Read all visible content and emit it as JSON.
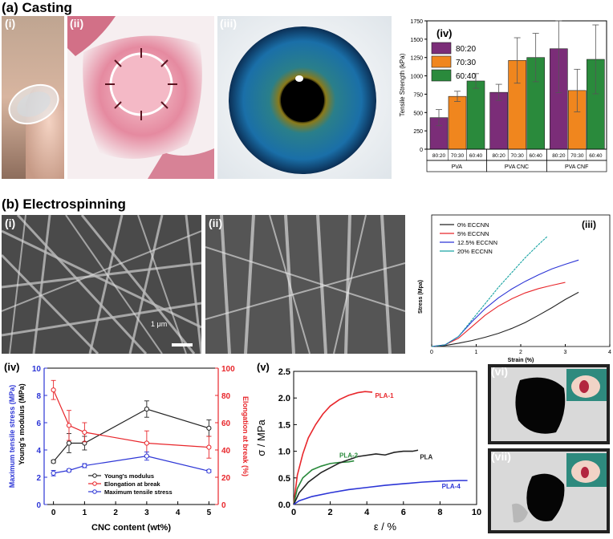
{
  "section_a": {
    "title": "(a) Casting",
    "panels": {
      "i": "(i)",
      "ii": "(ii)",
      "iii": "(iii)",
      "iv": "(iv)"
    }
  },
  "section_b": {
    "title": "(b) Electrospinning",
    "panels": {
      "i": "(i)",
      "ii": "(ii)",
      "iii": "(iii)",
      "iv": "(iv)",
      "v": "(v)",
      "vi": "(vi)",
      "vii": "(vii)"
    },
    "scale_bar": "1 μm"
  },
  "colors": {
    "purple": "#7b2d78",
    "orange": "#f0861e",
    "green": "#2a8a3c",
    "black_series": "#222222",
    "red_series": "#e8262b",
    "blue_series": "#2c35d6",
    "teal_series": "#19a4a3"
  },
  "chart_data": [
    {
      "id": "a-iv",
      "type": "bar",
      "ylabel": "Tensile Strength (kPa)",
      "ylim": [
        0,
        1750
      ],
      "yticks": [
        0,
        250,
        500,
        750,
        1000,
        1250,
        1500,
        1750
      ],
      "legend": [
        "80:20",
        "70:30",
        "60:40"
      ],
      "groups": [
        "PVA",
        "PVA CNC",
        "PVA CNF"
      ],
      "sub_categories": [
        "80:20",
        "70:30",
        "60:40"
      ],
      "values": [
        [
          430,
          720,
          930
        ],
        [
          775,
          1210,
          1250
        ],
        [
          1370,
          800,
          1225
        ]
      ],
      "errors": [
        [
          110,
          70,
          100
        ],
        [
          110,
          310,
          330
        ],
        [
          600,
          290,
          470
        ]
      ]
    },
    {
      "id": "b-iii",
      "type": "line",
      "xlabel": "Strain (%)",
      "ylabel": "Stress (Mpa)",
      "xlim": [
        0,
        4
      ],
      "ylim": [
        0,
        40
      ],
      "xticks": [
        0,
        1,
        2,
        3,
        4
      ],
      "series": [
        {
          "name": "0% ECCNN",
          "x": [
            0,
            0.3,
            0.6,
            0.9,
            1.2,
            1.5,
            1.8,
            2.1,
            2.4,
            2.7,
            3.0,
            3.3
          ],
          "y": [
            0,
            0.3,
            1.0,
            1.8,
            2.8,
            4.0,
            5.5,
            7.3,
            9.5,
            11.8,
            14.3,
            16.5
          ]
        },
        {
          "name": "5% ECCNN",
          "x": [
            0,
            0.3,
            0.6,
            0.9,
            1.2,
            1.5,
            1.8,
            2.1,
            2.4,
            2.7,
            3.0
          ],
          "y": [
            0,
            0.5,
            2.5,
            6.0,
            9.5,
            12.3,
            14.5,
            16.3,
            17.6,
            18.6,
            19.5
          ]
        },
        {
          "name": "12.5% ECCNN",
          "x": [
            0,
            0.3,
            0.6,
            0.9,
            1.2,
            1.5,
            1.8,
            2.1,
            2.4,
            2.7,
            3.0,
            3.3
          ],
          "y": [
            0,
            0.5,
            3.0,
            7.5,
            11.5,
            14.8,
            17.5,
            19.8,
            21.8,
            23.6,
            25.0,
            26.3
          ]
        },
        {
          "name": "20% ECCNN",
          "x": [
            0,
            0.3,
            0.6,
            0.9,
            1.2,
            1.5,
            1.8,
            2.1,
            2.4,
            2.6
          ],
          "y": [
            0,
            0.5,
            3.0,
            8.0,
            13.0,
            18.0,
            22.5,
            27.0,
            31.0,
            33.5
          ]
        }
      ]
    },
    {
      "id": "b-iv",
      "type": "line",
      "xlabel": "CNC content (wt%)",
      "ylabel_left_1": "Maximum tensile stress (MPa)",
      "ylabel_left_2": "Young's modulus (MPa)",
      "ylabel_right": "Elongation at break (%)",
      "xlim": [
        -0.3,
        5.3
      ],
      "ylim_left": [
        0,
        10
      ],
      "ylim_right": [
        0,
        100
      ],
      "xticks": [
        0,
        1,
        2,
        3,
        4,
        5
      ],
      "yticks_left": [
        0,
        2,
        4,
        6,
        8,
        10
      ],
      "yticks_right": [
        0,
        20,
        40,
        60,
        80,
        100
      ],
      "series": [
        {
          "name": "Young's modulus",
          "axis": "left",
          "x": [
            0,
            0.5,
            1,
            3,
            5
          ],
          "y": [
            3.15,
            4.5,
            4.5,
            7.0,
            5.6
          ],
          "err": [
            0.1,
            0.7,
            0.5,
            0.6,
            0.6
          ]
        },
        {
          "name": "Elongation at break",
          "axis": "right",
          "x": [
            0,
            0.5,
            1,
            3,
            5
          ],
          "y": [
            84,
            58,
            53,
            45,
            42
          ],
          "err": [
            7,
            11,
            7,
            9,
            8
          ]
        },
        {
          "name": "Maximum tensile stress",
          "axis": "left",
          "x": [
            0,
            0.5,
            1,
            3,
            5
          ],
          "y": [
            2.3,
            2.5,
            2.85,
            3.55,
            2.45
          ],
          "err": [
            0.2,
            0.1,
            0.15,
            0.3,
            0.1
          ]
        }
      ]
    },
    {
      "id": "b-v",
      "type": "line",
      "xlabel": "ε / %",
      "ylabel": "σ / MPa",
      "xlim": [
        0,
        10
      ],
      "ylim": [
        0,
        2.5
      ],
      "xticks": [
        0,
        2,
        4,
        6,
        8,
        10
      ],
      "yticks": [
        0.0,
        0.5,
        1.0,
        1.5,
        2.0,
        2.5
      ],
      "series": [
        {
          "name": "PLA-1",
          "x": [
            0,
            0.2,
            0.5,
            0.8,
            1.2,
            1.6,
            2.0,
            2.5,
            3.0,
            3.5,
            3.9,
            4.3
          ],
          "y": [
            0,
            0.55,
            0.95,
            1.25,
            1.5,
            1.7,
            1.85,
            1.97,
            2.05,
            2.1,
            2.12,
            2.11
          ]
        },
        {
          "name": "PLA-2",
          "x": [
            0,
            0.2,
            0.5,
            1.0,
            1.5,
            2.0,
            2.5,
            3.0,
            3.3
          ],
          "y": [
            0,
            0.3,
            0.5,
            0.65,
            0.72,
            0.77,
            0.79,
            0.8,
            0.82
          ]
        },
        {
          "name": "PLA",
          "x": [
            0,
            0.3,
            0.8,
            1.5,
            2.5,
            3.5,
            4.5,
            5.0,
            5.5,
            6.0,
            6.5,
            6.8
          ],
          "y": [
            0,
            0.22,
            0.42,
            0.6,
            0.78,
            0.9,
            0.95,
            0.93,
            0.98,
            1.0,
            1.0,
            1.02
          ]
        },
        {
          "name": "PLA-4",
          "x": [
            0,
            0.3,
            1.0,
            2.0,
            3.0,
            4.0,
            5.0,
            6.0,
            7.0,
            8.0,
            9.0,
            9.5
          ],
          "y": [
            0,
            0.07,
            0.15,
            0.22,
            0.28,
            0.32,
            0.36,
            0.39,
            0.42,
            0.44,
            0.45,
            0.45
          ]
        }
      ]
    }
  ]
}
